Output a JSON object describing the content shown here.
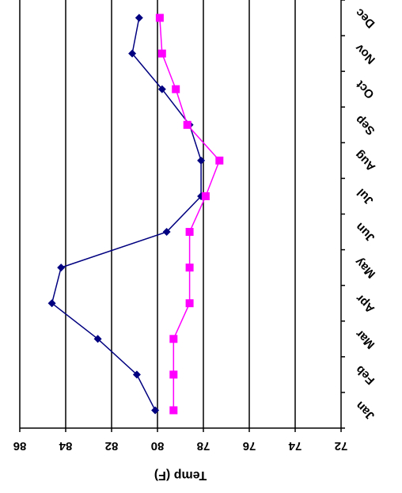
{
  "chart_data": {
    "type": "line",
    "orientation": "rotated-180",
    "categories": [
      "Jan",
      "Feb",
      "Mar",
      "Apr",
      "May",
      "Jun",
      "Jul",
      "Aug",
      "Sep",
      "Oct",
      "Nov",
      "Dec"
    ],
    "series": [
      {
        "color": "#000080",
        "marker": "diamond",
        "values": [
          80.1,
          80.9,
          82.6,
          84.6,
          84.2,
          79.6,
          78.1,
          78.1,
          78.6,
          79.8,
          81.1,
          80.8
        ]
      },
      {
        "color": "#ff00ff",
        "marker": "square",
        "values": [
          79.3,
          79.3,
          79.3,
          78.6,
          78.6,
          78.6,
          77.9,
          77.3,
          78.7,
          79.2,
          79.8,
          79.9
        ]
      }
    ],
    "ylabel": "Temp (F)",
    "ylim": [
      72,
      86
    ],
    "yticks": [
      72,
      74,
      76,
      78,
      80,
      82,
      84,
      86
    ],
    "grid": true
  }
}
